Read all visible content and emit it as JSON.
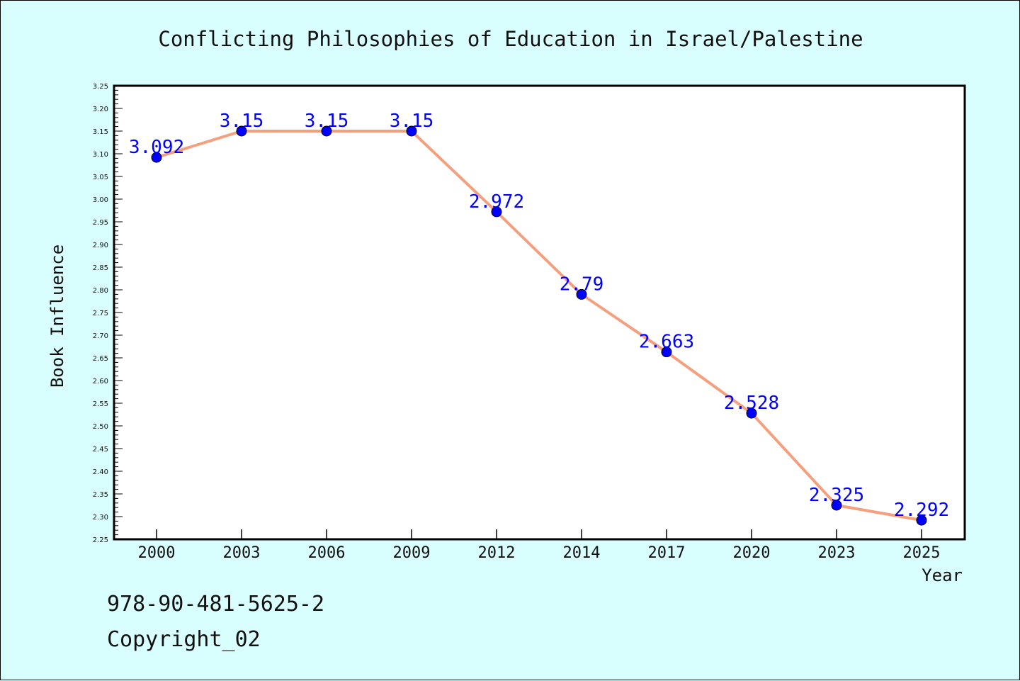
{
  "chart_data": {
    "type": "line",
    "title": "Conflicting Philosophies of Education in Israel/Palestine",
    "xlabel": "Year",
    "ylabel": "Book Influence",
    "categories": [
      "2000",
      "2003",
      "2006",
      "2009",
      "2012",
      "2014",
      "2017",
      "2020",
      "2023",
      "2025"
    ],
    "series": [
      {
        "values": [
          3.092,
          3.15,
          3.15,
          3.15,
          2.972,
          2.79,
          2.663,
          2.528,
          2.325,
          2.292
        ],
        "labels": [
          "3.092",
          "3.15",
          "3.15",
          "3.15",
          "2.972",
          "2.79",
          "2.663",
          "2.528",
          "2.325",
          "2.292"
        ],
        "line_color": "#f4a07e",
        "marker_color": "#0000ff"
      }
    ],
    "ylim": [
      2.25,
      3.25
    ],
    "yticks": [
      "2.25",
      "2.30",
      "2.35",
      "2.40",
      "2.45",
      "2.50",
      "2.55",
      "2.60",
      "2.65",
      "2.70",
      "2.75",
      "2.80",
      "2.85",
      "2.90",
      "2.95",
      "3.00",
      "3.05",
      "3.10",
      "3.15",
      "3.20",
      "3.25"
    ],
    "grid": false,
    "background_color": "#d8fefe",
    "plot_background_color": "#ffffff"
  },
  "footer": {
    "isbn": "978-90-481-5625-2",
    "copyright": "Copyright_02"
  }
}
